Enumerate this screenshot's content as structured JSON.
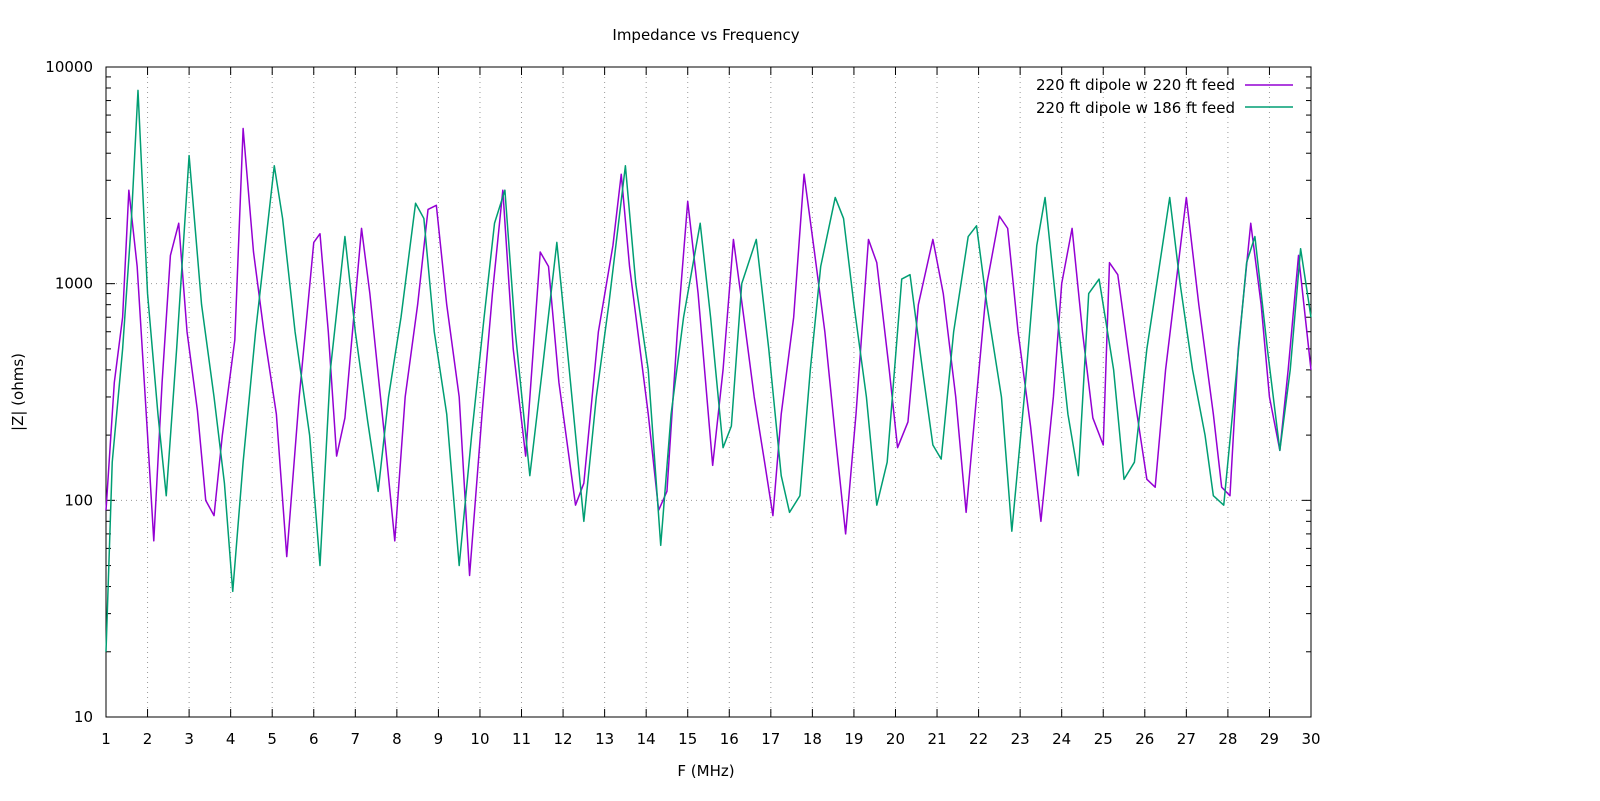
{
  "chart_data": {
    "type": "line",
    "title": "Impedance vs Frequency",
    "xlabel": "F (MHz)",
    "ylabel": "|Z| (ohms)",
    "xlim": [
      1,
      30
    ],
    "ylim": [
      10,
      10000
    ],
    "yscale": "log",
    "grid": "dotted",
    "legend_position": "top-right",
    "xticks": [
      "1",
      "2",
      "3",
      "4",
      "5",
      "6",
      "7",
      "8",
      "9",
      "10",
      "11",
      "12",
      "13",
      "14",
      "15",
      "16",
      "17",
      "18",
      "19",
      "20",
      "21",
      "22",
      "23",
      "24",
      "25",
      "26",
      "27",
      "28",
      "29",
      "30"
    ],
    "yticks": [
      "10",
      "100",
      "1000",
      "10000"
    ],
    "series": [
      {
        "name": "220 ft dipole w 220 ft feed",
        "color": "#9400d3",
        "points": [
          [
            1.0,
            90
          ],
          [
            1.2,
            350
          ],
          [
            1.4,
            700
          ],
          [
            1.55,
            2700
          ],
          [
            1.75,
            1200
          ],
          [
            2.0,
            200
          ],
          [
            2.15,
            65
          ],
          [
            2.35,
            350
          ],
          [
            2.55,
            1350
          ],
          [
            2.75,
            1900
          ],
          [
            2.95,
            600
          ],
          [
            3.2,
            260
          ],
          [
            3.4,
            100
          ],
          [
            3.6,
            85
          ],
          [
            3.8,
            200
          ],
          [
            4.1,
            550
          ],
          [
            4.3,
            5200
          ],
          [
            4.55,
            1400
          ],
          [
            4.8,
            600
          ],
          [
            5.1,
            250
          ],
          [
            5.35,
            55
          ],
          [
            5.65,
            300
          ],
          [
            6.0,
            1550
          ],
          [
            6.15,
            1700
          ],
          [
            6.35,
            600
          ],
          [
            6.55,
            160
          ],
          [
            6.75,
            240
          ],
          [
            7.15,
            1800
          ],
          [
            7.35,
            900
          ],
          [
            7.7,
            200
          ],
          [
            7.95,
            65
          ],
          [
            8.2,
            300
          ],
          [
            8.5,
            800
          ],
          [
            8.75,
            2200
          ],
          [
            8.95,
            2300
          ],
          [
            9.2,
            800
          ],
          [
            9.5,
            300
          ],
          [
            9.75,
            45
          ],
          [
            10.05,
            250
          ],
          [
            10.3,
            900
          ],
          [
            10.55,
            2700
          ],
          [
            10.8,
            500
          ],
          [
            11.1,
            160
          ],
          [
            11.45,
            1400
          ],
          [
            11.65,
            1200
          ],
          [
            11.9,
            350
          ],
          [
            12.3,
            95
          ],
          [
            12.5,
            120
          ],
          [
            12.85,
            600
          ],
          [
            13.2,
            1500
          ],
          [
            13.4,
            3200
          ],
          [
            13.6,
            1200
          ],
          [
            14.05,
            250
          ],
          [
            14.3,
            90
          ],
          [
            14.5,
            110
          ],
          [
            14.75,
            600
          ],
          [
            15.0,
            2400
          ],
          [
            15.25,
            900
          ],
          [
            15.6,
            145
          ],
          [
            15.85,
            400
          ],
          [
            16.1,
            1600
          ],
          [
            16.35,
            700
          ],
          [
            16.6,
            300
          ],
          [
            16.85,
            150
          ],
          [
            17.05,
            85
          ],
          [
            17.25,
            250
          ],
          [
            17.55,
            700
          ],
          [
            17.8,
            3200
          ],
          [
            18.05,
            1400
          ],
          [
            18.3,
            600
          ],
          [
            18.55,
            200
          ],
          [
            18.8,
            70
          ],
          [
            19.05,
            250
          ],
          [
            19.35,
            1600
          ],
          [
            19.55,
            1250
          ],
          [
            19.85,
            400
          ],
          [
            20.05,
            175
          ],
          [
            20.3,
            230
          ],
          [
            20.55,
            800
          ],
          [
            20.9,
            1600
          ],
          [
            21.15,
            900
          ],
          [
            21.45,
            300
          ],
          [
            21.7,
            88
          ],
          [
            21.95,
            300
          ],
          [
            22.2,
            1000
          ],
          [
            22.5,
            2050
          ],
          [
            22.7,
            1800
          ],
          [
            22.95,
            600
          ],
          [
            23.25,
            220
          ],
          [
            23.5,
            80
          ],
          [
            23.8,
            300
          ],
          [
            24.0,
            1000
          ],
          [
            24.25,
            1800
          ],
          [
            24.5,
            600
          ],
          [
            24.75,
            240
          ],
          [
            25.0,
            180
          ],
          [
            25.15,
            1250
          ],
          [
            25.35,
            1100
          ],
          [
            25.75,
            300
          ],
          [
            26.05,
            125
          ],
          [
            26.25,
            115
          ],
          [
            26.5,
            400
          ],
          [
            26.8,
            1200
          ],
          [
            27.0,
            2500
          ],
          [
            27.3,
            800
          ],
          [
            27.65,
            250
          ],
          [
            27.85,
            115
          ],
          [
            28.05,
            105
          ],
          [
            28.25,
            500
          ],
          [
            28.55,
            1900
          ],
          [
            28.8,
            800
          ],
          [
            29.0,
            300
          ],
          [
            29.25,
            170
          ],
          [
            29.45,
            400
          ],
          [
            29.7,
            1350
          ],
          [
            30.0,
            400
          ]
        ]
      },
      {
        "name": "220 ft dipole w 186 ft feed",
        "color": "#009e73",
        "points": [
          [
            1.0,
            20
          ],
          [
            1.15,
            150
          ],
          [
            1.4,
            500
          ],
          [
            1.6,
            1800
          ],
          [
            1.77,
            7800
          ],
          [
            2.0,
            900
          ],
          [
            2.25,
            250
          ],
          [
            2.45,
            105
          ],
          [
            2.7,
            500
          ],
          [
            3.0,
            3900
          ],
          [
            3.3,
            800
          ],
          [
            3.6,
            300
          ],
          [
            3.85,
            120
          ],
          [
            4.05,
            38
          ],
          [
            4.3,
            150
          ],
          [
            4.6,
            600
          ],
          [
            5.05,
            3500
          ],
          [
            5.25,
            2000
          ],
          [
            5.55,
            600
          ],
          [
            5.9,
            200
          ],
          [
            6.15,
            50
          ],
          [
            6.4,
            400
          ],
          [
            6.75,
            1650
          ],
          [
            7.0,
            600
          ],
          [
            7.3,
            230
          ],
          [
            7.55,
            110
          ],
          [
            7.8,
            300
          ],
          [
            8.1,
            700
          ],
          [
            8.45,
            2350
          ],
          [
            8.65,
            2000
          ],
          [
            8.9,
            600
          ],
          [
            9.2,
            250
          ],
          [
            9.5,
            50
          ],
          [
            9.8,
            200
          ],
          [
            10.1,
            700
          ],
          [
            10.35,
            1900
          ],
          [
            10.6,
            2700
          ],
          [
            10.85,
            600
          ],
          [
            11.2,
            130
          ],
          [
            11.5,
            400
          ],
          [
            11.85,
            1550
          ],
          [
            12.15,
            400
          ],
          [
            12.5,
            80
          ],
          [
            12.8,
            300
          ],
          [
            13.1,
            800
          ],
          [
            13.5,
            3500
          ],
          [
            13.75,
            1000
          ],
          [
            14.05,
            400
          ],
          [
            14.35,
            62
          ],
          [
            14.6,
            250
          ],
          [
            14.9,
            700
          ],
          [
            15.3,
            1900
          ],
          [
            15.55,
            700
          ],
          [
            15.85,
            175
          ],
          [
            16.05,
            220
          ],
          [
            16.3,
            1000
          ],
          [
            16.65,
            1600
          ],
          [
            16.95,
            500
          ],
          [
            17.25,
            130
          ],
          [
            17.45,
            88
          ],
          [
            17.7,
            105
          ],
          [
            17.95,
            400
          ],
          [
            18.2,
            1200
          ],
          [
            18.55,
            2500
          ],
          [
            18.75,
            2000
          ],
          [
            19.0,
            800
          ],
          [
            19.3,
            300
          ],
          [
            19.55,
            95
          ],
          [
            19.8,
            150
          ],
          [
            20.15,
            1050
          ],
          [
            20.35,
            1100
          ],
          [
            20.65,
            400
          ],
          [
            20.9,
            180
          ],
          [
            21.1,
            155
          ],
          [
            21.4,
            600
          ],
          [
            21.75,
            1650
          ],
          [
            21.95,
            1850
          ],
          [
            22.2,
            800
          ],
          [
            22.55,
            300
          ],
          [
            22.8,
            72
          ],
          [
            23.1,
            300
          ],
          [
            23.4,
            1500
          ],
          [
            23.6,
            2500
          ],
          [
            23.9,
            700
          ],
          [
            24.15,
            250
          ],
          [
            24.4,
            130
          ],
          [
            24.65,
            900
          ],
          [
            24.9,
            1050
          ],
          [
            25.25,
            400
          ],
          [
            25.5,
            125
          ],
          [
            25.75,
            150
          ],
          [
            26.05,
            500
          ],
          [
            26.35,
            1200
          ],
          [
            26.6,
            2500
          ],
          [
            26.85,
            1000
          ],
          [
            27.15,
            400
          ],
          [
            27.45,
            200
          ],
          [
            27.65,
            105
          ],
          [
            27.9,
            95
          ],
          [
            28.15,
            300
          ],
          [
            28.45,
            1250
          ],
          [
            28.65,
            1650
          ],
          [
            28.95,
            500
          ],
          [
            29.25,
            170
          ],
          [
            29.5,
            400
          ],
          [
            29.75,
            1450
          ],
          [
            30.0,
            700
          ]
        ]
      }
    ]
  }
}
